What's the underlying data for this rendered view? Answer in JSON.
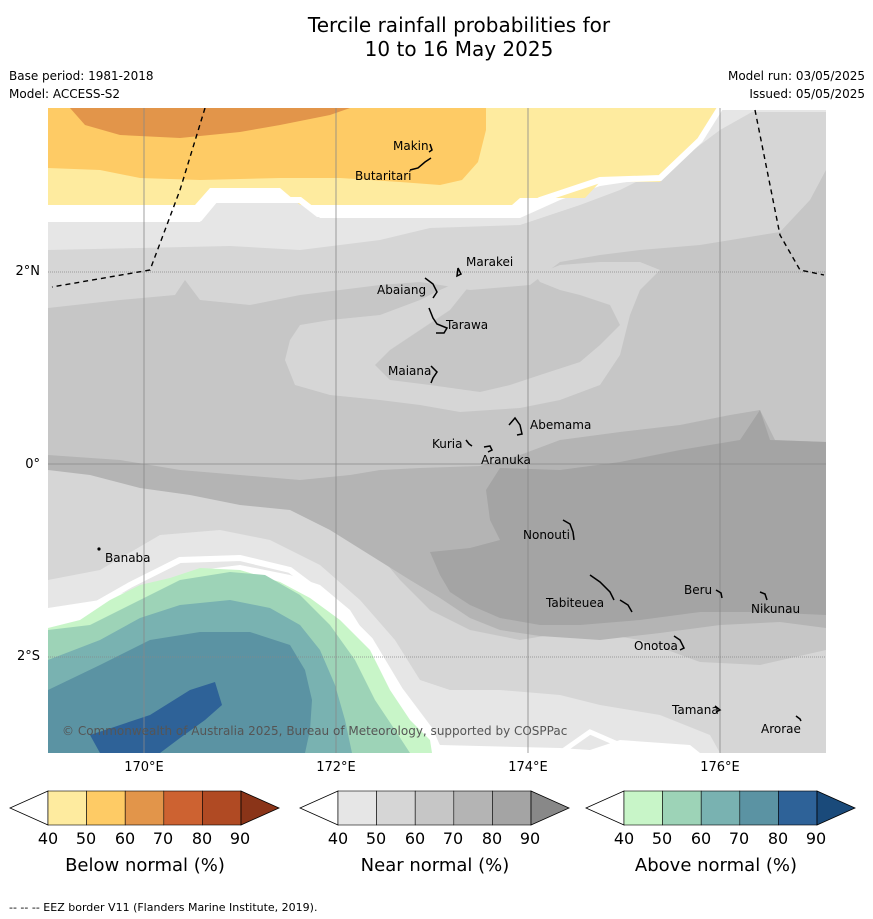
{
  "title_line1": "Tercile rainfall probabilities for",
  "title_line2": "10 to 16 May 2025",
  "base_period": "Base period: 1981-2018",
  "model": "Model: ACCESS-S2",
  "model_run": "Model run: 03/05/2025",
  "issued": "Issued: 05/05/2025",
  "lat_labels": [
    "2°N",
    "0°",
    "2°S"
  ],
  "lon_labels": [
    "170°E",
    "172°E",
    "174°E",
    "176°E"
  ],
  "places": {
    "makin": "Makin",
    "butaritari": "Butaritari",
    "marakei": "Marakei",
    "abaiang": "Abaiang",
    "tarawa": "Tarawa",
    "maiana": "Maiana",
    "abemama": "Abemama",
    "kuria": "Kuria",
    "aranuka": "Aranuka",
    "nonouti": "Nonouti",
    "banaba": "Banaba",
    "beru": "Beru",
    "tabiteuea": "Tabiteuea",
    "nikunau": "Nikunau",
    "onotoa": "Onotoa",
    "tamana": "Tamana",
    "arorae": "Arorae"
  },
  "copyright": "© Commonwealth of Australia 2025, Bureau of Meteorology, supported by COSPPac",
  "colorbars": {
    "below": {
      "title": "Below normal (%)",
      "ticks": [
        "40",
        "50",
        "60",
        "70",
        "80",
        "90"
      ],
      "colors": [
        "#ffffff",
        "#feeb9f",
        "#fecb65",
        "#e2954a",
        "#cd6231",
        "#b04a23",
        "#8a3418"
      ]
    },
    "near": {
      "title": "Near normal (%)",
      "ticks": [
        "40",
        "50",
        "60",
        "70",
        "80",
        "90"
      ],
      "colors": [
        "#ffffff",
        "#e6e6e6",
        "#d6d6d6",
        "#c6c6c6",
        "#b4b4b4",
        "#a4a4a4",
        "#888888"
      ]
    },
    "above": {
      "title": "Above normal (%)",
      "ticks": [
        "40",
        "50",
        "60",
        "70",
        "80",
        "90"
      ],
      "colors": [
        "#ffffff",
        "#c8f5c8",
        "#9dd3b7",
        "#79b2b1",
        "#5b93a3",
        "#2e6298",
        "#1a4a7a"
      ]
    }
  },
  "footnote": "--  --  -- EEZ border V11 (Flanders Marine Institute, 2019)."
}
